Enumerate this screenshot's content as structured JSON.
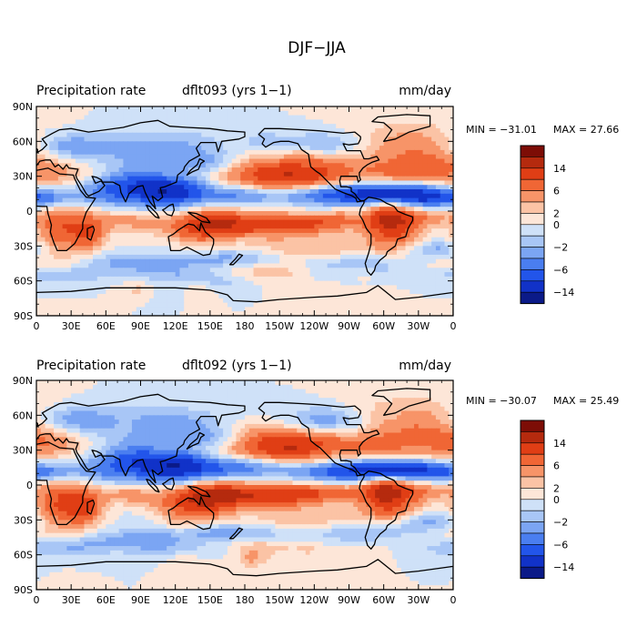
{
  "figure": {
    "title": "DJF−JJA"
  },
  "palette": {
    "ocean_light": "#dce9f7",
    "land_neutral": "#fdf2ea",
    "contour_colors": [
      "#0b1a88",
      "#1132c8",
      "#2255ea",
      "#4a7ef0",
      "#7ba5f3",
      "#a8c6f6",
      "#cfe1f8",
      "#fde6d8",
      "#fbc3a5",
      "#f79468",
      "#f06635",
      "#e03e15",
      "#b52a0e",
      "#7d0d06"
    ]
  },
  "panels": [
    {
      "title_left": "Precipitation rate",
      "title_mid": "dflt093 (yrs 1−1)",
      "units": "mm/day",
      "min_label": "MIN = −31.01",
      "max_label": "MAX =  27.66",
      "colorbar_ticks": [
        "14",
        "6",
        "2",
        "0",
        "−2",
        "−6",
        "−14"
      ]
    },
    {
      "title_left": "Precipitation rate",
      "title_mid": "dflt092 (yrs 1−1)",
      "units": "mm/day",
      "min_label": "MIN = −30.07",
      "max_label": "MAX =  25.49",
      "colorbar_ticks": [
        "14",
        "6",
        "2",
        "0",
        "−2",
        "−6",
        "−14"
      ]
    }
  ],
  "axes": {
    "lon_ticks": [
      "0",
      "30E",
      "60E",
      "90E",
      "120E",
      "150E",
      "180",
      "150W",
      "120W",
      "90W",
      "60W",
      "30W",
      "0"
    ],
    "lat_ticks": [
      "90N",
      "60N",
      "30N",
      "0",
      "30S",
      "60S",
      "90S"
    ]
  }
}
